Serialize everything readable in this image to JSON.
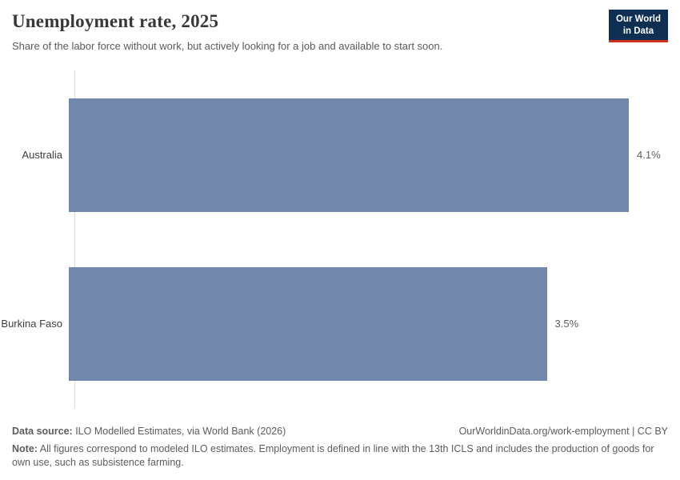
{
  "header": {
    "title": "Unemployment rate, 2025",
    "subtitle": "Share of the labor force without work, but actively looking for a job and available to start soon.",
    "logo": {
      "line1": "Our World",
      "line2": "in Data"
    }
  },
  "chart_data": {
    "type": "bar",
    "orientation": "horizontal",
    "title": "Unemployment rate, 2025",
    "categories": [
      "Australia",
      "Burkina Faso"
    ],
    "values": [
      4.1,
      3.5
    ],
    "value_labels": [
      "4.1%",
      "3.5%"
    ],
    "unit": "%",
    "xlim": [
      0,
      4.1
    ],
    "grid": false,
    "legend": "none",
    "bar_color": "#7287ac"
  },
  "footer": {
    "datasource_label": "Data source:",
    "datasource_text": " ILO Modelled Estimates, via World Bank (2026)",
    "link_text": "OurWorldinData.org/work-employment | CC BY",
    "note_label": "Note:",
    "note_text": " All figures correspond to modeled ILO estimates. Employment is defined in line with the 13th ICLS and includes the production of goods for own use, such as subsistence farming."
  },
  "colors": {
    "bar": "#7287ac",
    "axis": "#dcdcdc",
    "logo_bg": "#0e2f51",
    "logo_accent": "#cf3020"
  }
}
